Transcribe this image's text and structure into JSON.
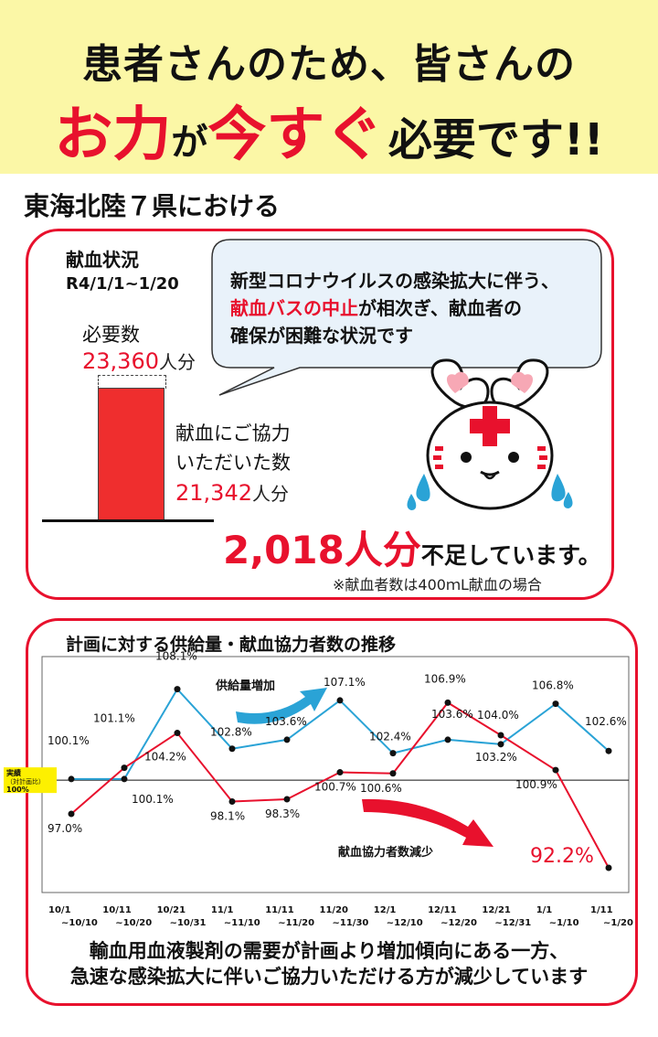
{
  "headline": {
    "line1": "患者さんのため、皆さんの",
    "line2_part1": "お力",
    "line2_part2": "が",
    "line2_part3": "今すぐ",
    "line2_part4": "必要です!!"
  },
  "section_title": "東海北陸７県における",
  "status": {
    "title": "献血状況",
    "date_range": "R4/1/1~1/20",
    "required_label": "必要数",
    "required_value": "23,360",
    "required_unit": "人分",
    "donated_label_1": "献血にご協力",
    "donated_label_2": "いただいた数",
    "donated_value": "21,342",
    "donated_unit": "人分",
    "shortage_value": "2,018人分",
    "shortage_text": "不足しています。",
    "note": "※献血者数は400ｍL献血の場合",
    "required_count": 23360,
    "donated_count": 21342
  },
  "speech_bubble": {
    "line1": "新型コロナウイルスの感染拡大に伴う、",
    "line2_red": "献血バスの中止",
    "line2_rest": "が相次ぎ、献血者の",
    "line3": "確保が困難な状況です"
  },
  "chart_title": "計画に対する供給量・献血協力者数の推移",
  "chart_data": {
    "type": "line",
    "categories": [
      [
        "10/1",
        "~10/10"
      ],
      [
        "10/11",
        "~10/20"
      ],
      [
        "10/21",
        "~10/31"
      ],
      [
        "11/1",
        "~11/10"
      ],
      [
        "11/11",
        "~11/20"
      ],
      [
        "11/20",
        "~11/30"
      ],
      [
        "12/1",
        "~12/10"
      ],
      [
        "12/11",
        "~12/20"
      ],
      [
        "12/21",
        "~12/31"
      ],
      [
        "1/1",
        "~1/10"
      ],
      [
        "1/11",
        "~1/20"
      ]
    ],
    "series": [
      {
        "name": "供給量増加",
        "color": "#2aa3d6",
        "values": [
          100.1,
          100.1,
          108.1,
          102.8,
          103.6,
          107.1,
          102.4,
          103.6,
          103.2,
          106.8,
          102.6
        ],
        "labels": [
          "100.1%",
          "",
          "108.1%",
          "102.8%",
          "103.6%",
          "107.1%",
          "102.4%",
          "103.6%",
          "103.2%",
          "106.8%",
          "102.6%"
        ]
      },
      {
        "name": "献血協力者数減少",
        "color": "#e8112d",
        "values": [
          97.0,
          101.1,
          104.2,
          98.1,
          98.3,
          100.7,
          100.6,
          106.9,
          104.0,
          100.9,
          92.2
        ],
        "labels": [
          "97.0%",
          "101.1%",
          "104.2%",
          "98.1%",
          "98.3%",
          "100.7%",
          "100.6%",
          "106.9%",
          "104.0%",
          "100.9%",
          "92.2%"
        ]
      }
    ],
    "extra_label": "100.1%",
    "reference_line": 100,
    "reference_label_1": "実績",
    "reference_label_2": "（対計画比）",
    "reference_label_3": "100%",
    "ylim": [
      90,
      111
    ]
  },
  "footer": {
    "line1": "輸血用血液製剤の需要が計画より増加傾向にある一方、",
    "line2": "急速な感染拡大に伴いご協力いただける方が減少しています"
  },
  "colors": {
    "banner": "#fbf7a6",
    "accent_red": "#e8112d",
    "accent_blue": "#2aa3d6"
  }
}
